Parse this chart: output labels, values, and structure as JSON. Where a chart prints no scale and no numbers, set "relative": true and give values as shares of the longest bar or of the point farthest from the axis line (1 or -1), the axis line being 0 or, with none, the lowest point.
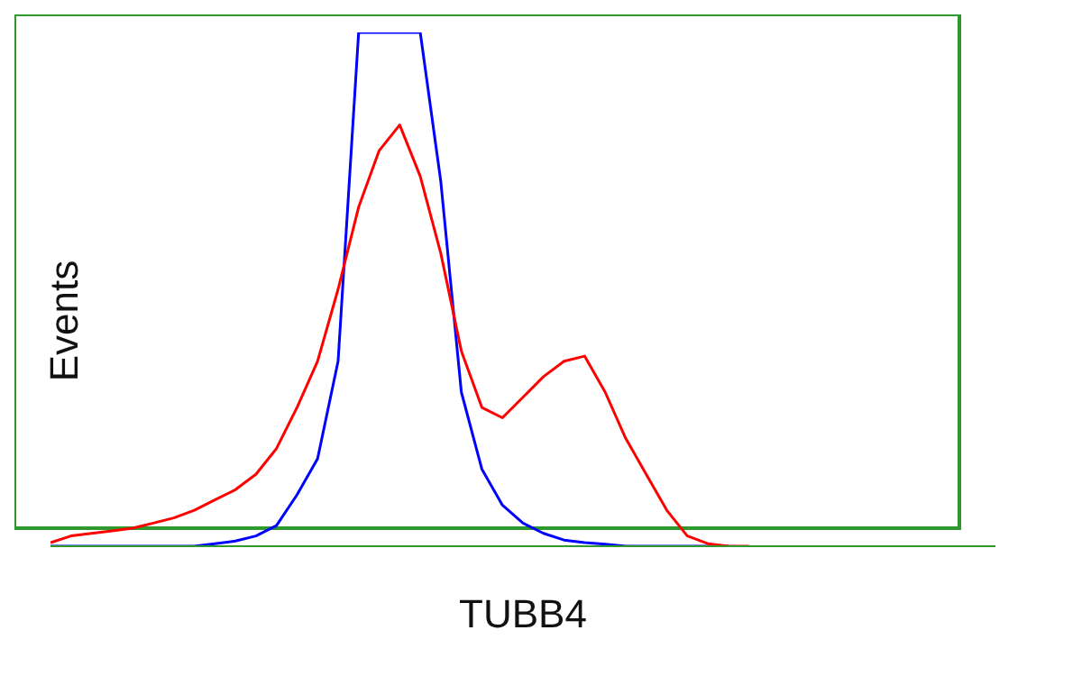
{
  "chart_data": {
    "type": "line",
    "relative": true,
    "xlabel": "TUBB4",
    "ylabel": "Events",
    "legend": false,
    "grid": false,
    "categories": [
      null,
      null,
      null,
      null,
      null,
      null,
      null,
      null,
      null,
      null,
      null,
      null,
      null,
      null,
      null,
      null,
      null,
      null,
      null,
      null,
      null,
      null,
      null,
      null,
      null,
      null,
      null,
      null,
      null,
      null,
      null,
      null,
      null,
      null,
      null,
      null,
      null,
      null,
      null,
      null,
      null,
      null,
      null,
      null,
      null,
      null,
      null
    ],
    "series": [
      {
        "color": "#0000ff",
        "values": [
          0,
          0,
          0,
          0,
          0,
          0,
          0,
          0,
          0.005,
          0.01,
          0.02,
          0.04,
          0.1,
          0.17,
          0.36,
          1,
          1,
          1,
          1,
          0.71,
          0.3,
          0.15,
          0.08,
          0.045,
          0.025,
          0.012,
          0.007,
          0.004,
          0,
          0,
          0,
          0,
          0,
          0,
          null,
          null,
          null,
          null,
          null,
          null,
          null,
          null,
          null,
          null,
          null,
          null,
          null
        ]
      },
      {
        "color": "#ff0000",
        "values": [
          0.007,
          0.02,
          0.025,
          0.03,
          0.035,
          0.045,
          0.055,
          0.07,
          0.09,
          0.11,
          0.14,
          0.19,
          0.27,
          0.36,
          0.5,
          0.66,
          0.77,
          0.82,
          0.72,
          0.57,
          0.38,
          0.27,
          0.25,
          0.29,
          0.33,
          0.36,
          0.37,
          0.3,
          0.21,
          0.14,
          0.07,
          0.02,
          0.005,
          0,
          0,
          null,
          null,
          null,
          null,
          null,
          null,
          null,
          null,
          null,
          null,
          null,
          null
        ]
      }
    ]
  }
}
